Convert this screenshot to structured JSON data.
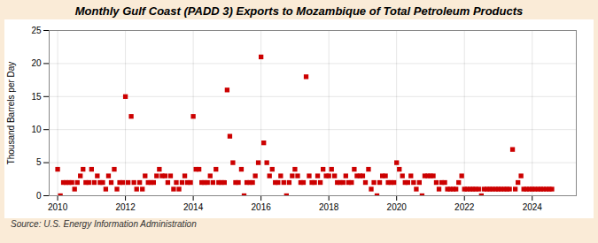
{
  "chart_data": {
    "type": "scatter",
    "title": "Monthly Gulf Coast (PADD 3) Exports to Mozambique of Total Petroleum Products",
    "ylabel": "Thousand Barrels per Day",
    "source": "Source: U.S. Energy Information Administration",
    "color": "#cc0000",
    "marker": "square",
    "grid": true,
    "xlim": [
      2009.75,
      2025.3
    ],
    "xticks": [
      2010,
      2012,
      2014,
      2016,
      2018,
      2020,
      2022,
      2024
    ],
    "ylim": [
      0,
      25
    ],
    "yticks": [
      0,
      5,
      10,
      15,
      20,
      25
    ],
    "x": [
      2010.0,
      2010.08,
      2010.17,
      2010.25,
      2010.33,
      2010.42,
      2010.5,
      2010.58,
      2010.67,
      2010.75,
      2010.83,
      2010.92,
      2011.0,
      2011.08,
      2011.17,
      2011.25,
      2011.33,
      2011.42,
      2011.5,
      2011.58,
      2011.67,
      2011.75,
      2011.83,
      2011.92,
      2012.0,
      2012.08,
      2012.17,
      2012.25,
      2012.33,
      2012.42,
      2012.5,
      2012.58,
      2012.67,
      2012.75,
      2012.83,
      2012.92,
      2013.0,
      2013.08,
      2013.17,
      2013.25,
      2013.33,
      2013.42,
      2013.5,
      2013.58,
      2013.67,
      2013.75,
      2013.83,
      2013.92,
      2014.0,
      2014.08,
      2014.17,
      2014.25,
      2014.33,
      2014.42,
      2014.5,
      2014.58,
      2014.67,
      2014.75,
      2014.83,
      2014.92,
      2015.0,
      2015.08,
      2015.17,
      2015.25,
      2015.33,
      2015.42,
      2015.5,
      2015.58,
      2015.67,
      2015.75,
      2015.83,
      2015.92,
      2016.0,
      2016.08,
      2016.17,
      2016.25,
      2016.33,
      2016.42,
      2016.5,
      2016.58,
      2016.67,
      2016.75,
      2016.83,
      2016.92,
      2017.0,
      2017.08,
      2017.17,
      2017.25,
      2017.33,
      2017.42,
      2017.5,
      2017.58,
      2017.67,
      2017.75,
      2017.83,
      2017.92,
      2018.0,
      2018.08,
      2018.17,
      2018.25,
      2018.33,
      2018.42,
      2018.5,
      2018.58,
      2018.67,
      2018.75,
      2018.83,
      2018.92,
      2019.0,
      2019.08,
      2019.17,
      2019.25,
      2019.33,
      2019.42,
      2019.5,
      2019.58,
      2019.67,
      2019.75,
      2019.83,
      2019.92,
      2020.0,
      2020.08,
      2020.17,
      2020.25,
      2020.33,
      2020.42,
      2020.5,
      2020.58,
      2020.67,
      2020.75,
      2020.83,
      2020.92,
      2021.0,
      2021.08,
      2021.17,
      2021.25,
      2021.33,
      2021.42,
      2021.5,
      2021.58,
      2021.67,
      2021.75,
      2021.83,
      2021.92,
      2022.0,
      2022.08,
      2022.17,
      2022.25,
      2022.33,
      2022.42,
      2022.5,
      2022.58,
      2022.67,
      2022.75,
      2022.83,
      2022.92,
      2023.0,
      2023.08,
      2023.17,
      2023.25,
      2023.33,
      2023.42,
      2023.5,
      2023.58,
      2023.67,
      2023.75,
      2023.83,
      2023.92,
      2024.0,
      2024.08,
      2024.17,
      2024.25,
      2024.33,
      2024.42,
      2024.5,
      2024.58
    ],
    "values": [
      4.0,
      0.0,
      2.0,
      2.0,
      2.0,
      2.0,
      1.0,
      2.0,
      3.0,
      4.0,
      2.0,
      2.0,
      4.0,
      2.0,
      3.0,
      2.0,
      2.0,
      1.0,
      3.0,
      2.0,
      4.0,
      1.0,
      2.0,
      2.0,
      15.0,
      2.0,
      12.0,
      2.0,
      1.0,
      2.0,
      1.0,
      3.0,
      2.0,
      2.0,
      2.0,
      3.0,
      4.0,
      3.0,
      3.0,
      2.0,
      3.0,
      1.0,
      2.0,
      1.0,
      2.0,
      3.0,
      2.0,
      2.0,
      12.0,
      4.0,
      4.0,
      2.0,
      2.0,
      2.0,
      3.0,
      2.0,
      4.0,
      2.0,
      2.0,
      2.0,
      16.0,
      9.0,
      5.0,
      2.0,
      2.0,
      4.0,
      0.0,
      2.0,
      2.0,
      2.0,
      3.0,
      5.0,
      21.0,
      8.0,
      5.0,
      3.0,
      4.0,
      2.0,
      2.0,
      3.0,
      2.0,
      0.0,
      2.0,
      3.0,
      4.0,
      3.0,
      2.0,
      2.0,
      18.0,
      3.0,
      2.0,
      2.0,
      3.0,
      2.0,
      4.0,
      3.0,
      3.0,
      4.0,
      3.0,
      2.0,
      2.0,
      2.0,
      3.0,
      2.0,
      2.0,
      4.0,
      3.0,
      3.0,
      3.0,
      2.0,
      4.0,
      1.0,
      2.0,
      0.0,
      2.0,
      3.0,
      3.0,
      2.0,
      2.0,
      2.0,
      5.0,
      4.0,
      3.0,
      2.0,
      2.0,
      3.0,
      2.0,
      1.0,
      2.0,
      0.0,
      3.0,
      3.0,
      3.0,
      3.0,
      2.0,
      1.0,
      2.0,
      2.0,
      1.0,
      1.0,
      1.0,
      1.0,
      2.0,
      3.0,
      1.0,
      1.0,
      1.0,
      1.0,
      1.0,
      1.0,
      0.0,
      1.0,
      1.0,
      1.0,
      1.0,
      1.0,
      1.0,
      1.0,
      1.0,
      1.0,
      1.0,
      7.0,
      1.0,
      2.0,
      3.0,
      1.0,
      1.0,
      1.0,
      1.0,
      1.0,
      1.0,
      1.0,
      1.0,
      1.0,
      1.0,
      1.0
    ]
  }
}
